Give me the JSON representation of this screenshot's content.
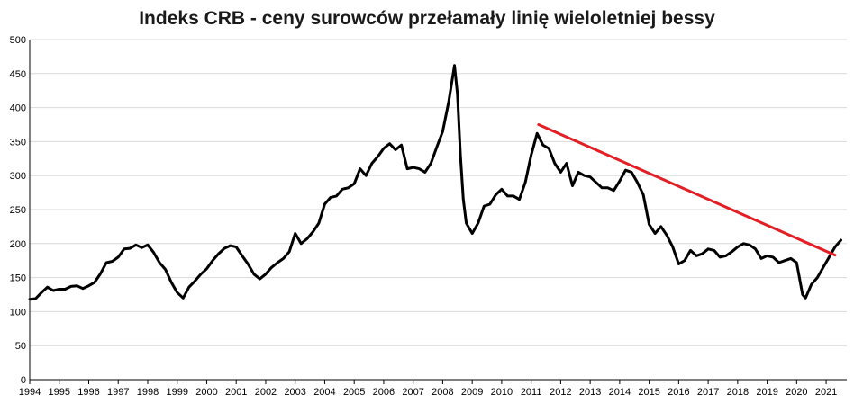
{
  "chart_data": {
    "type": "line",
    "title": "Indeks CRB - ceny surowców przełamały linię wieloletniej bessy",
    "xlabel": "",
    "ylabel": "",
    "xlim": [
      1994.0,
      2021.7
    ],
    "ylim": [
      0,
      500
    ],
    "grid": true,
    "legend": "none",
    "y_ticks": [
      0,
      50,
      100,
      150,
      200,
      250,
      300,
      350,
      400,
      450,
      500
    ],
    "x_ticks": [
      "1994",
      "1995",
      "1996",
      "1997",
      "1998",
      "1999",
      "2000",
      "2001",
      "2002",
      "2003",
      "2004",
      "2005",
      "2006",
      "2007",
      "2008",
      "2009",
      "2010",
      "2011",
      "2012",
      "2013",
      "2014",
      "2015",
      "2016",
      "2017",
      "2018",
      "2019",
      "2020",
      "2021"
    ],
    "colors": {
      "series": "#000000",
      "trendline": "#e31e24",
      "grid": "#d9d9d9"
    },
    "series": [
      {
        "values": [
          [
            1994.0,
            118
          ],
          [
            1994.2,
            119
          ],
          [
            1994.4,
            128
          ],
          [
            1994.6,
            136
          ],
          [
            1994.8,
            131
          ],
          [
            1995.0,
            133
          ],
          [
            1995.2,
            133
          ],
          [
            1995.4,
            137
          ],
          [
            1995.6,
            138
          ],
          [
            1995.8,
            134
          ],
          [
            1996.0,
            138
          ],
          [
            1996.2,
            143
          ],
          [
            1996.4,
            156
          ],
          [
            1996.6,
            172
          ],
          [
            1996.8,
            174
          ],
          [
            1997.0,
            180
          ],
          [
            1997.2,
            192
          ],
          [
            1997.4,
            193
          ],
          [
            1997.6,
            198
          ],
          [
            1997.8,
            194
          ],
          [
            1998.0,
            198
          ],
          [
            1998.2,
            187
          ],
          [
            1998.4,
            172
          ],
          [
            1998.6,
            162
          ],
          [
            1998.8,
            143
          ],
          [
            1999.0,
            128
          ],
          [
            1999.2,
            120
          ],
          [
            1999.4,
            136
          ],
          [
            1999.6,
            145
          ],
          [
            1999.8,
            155
          ],
          [
            2000.0,
            163
          ],
          [
            2000.2,
            175
          ],
          [
            2000.4,
            185
          ],
          [
            2000.6,
            193
          ],
          [
            2000.8,
            197
          ],
          [
            2001.0,
            195
          ],
          [
            2001.2,
            182
          ],
          [
            2001.4,
            170
          ],
          [
            2001.6,
            155
          ],
          [
            2001.8,
            148
          ],
          [
            2002.0,
            155
          ],
          [
            2002.2,
            165
          ],
          [
            2002.4,
            172
          ],
          [
            2002.6,
            178
          ],
          [
            2002.8,
            188
          ],
          [
            2003.0,
            215
          ],
          [
            2003.2,
            200
          ],
          [
            2003.4,
            207
          ],
          [
            2003.6,
            217
          ],
          [
            2003.8,
            230
          ],
          [
            2004.0,
            258
          ],
          [
            2004.2,
            268
          ],
          [
            2004.4,
            270
          ],
          [
            2004.6,
            280
          ],
          [
            2004.8,
            282
          ],
          [
            2005.0,
            288
          ],
          [
            2005.2,
            310
          ],
          [
            2005.4,
            300
          ],
          [
            2005.6,
            318
          ],
          [
            2005.8,
            328
          ],
          [
            2006.0,
            340
          ],
          [
            2006.2,
            347
          ],
          [
            2006.4,
            338
          ],
          [
            2006.6,
            345
          ],
          [
            2006.8,
            310
          ],
          [
            2007.0,
            312
          ],
          [
            2007.2,
            310
          ],
          [
            2007.4,
            305
          ],
          [
            2007.6,
            318
          ],
          [
            2007.8,
            342
          ],
          [
            2008.0,
            365
          ],
          [
            2008.2,
            408
          ],
          [
            2008.4,
            462
          ],
          [
            2008.5,
            420
          ],
          [
            2008.6,
            330
          ],
          [
            2008.7,
            265
          ],
          [
            2008.8,
            230
          ],
          [
            2009.0,
            215
          ],
          [
            2009.2,
            230
          ],
          [
            2009.4,
            255
          ],
          [
            2009.6,
            258
          ],
          [
            2009.8,
            272
          ],
          [
            2010.0,
            280
          ],
          [
            2010.2,
            270
          ],
          [
            2010.4,
            270
          ],
          [
            2010.6,
            265
          ],
          [
            2010.8,
            290
          ],
          [
            2011.0,
            330
          ],
          [
            2011.2,
            362
          ],
          [
            2011.4,
            345
          ],
          [
            2011.6,
            340
          ],
          [
            2011.8,
            318
          ],
          [
            2012.0,
            305
          ],
          [
            2012.2,
            318
          ],
          [
            2012.4,
            285
          ],
          [
            2012.6,
            305
          ],
          [
            2012.8,
            300
          ],
          [
            2013.0,
            298
          ],
          [
            2013.2,
            290
          ],
          [
            2013.4,
            282
          ],
          [
            2013.6,
            282
          ],
          [
            2013.8,
            278
          ],
          [
            2014.0,
            292
          ],
          [
            2014.2,
            308
          ],
          [
            2014.4,
            305
          ],
          [
            2014.6,
            290
          ],
          [
            2014.8,
            272
          ],
          [
            2015.0,
            228
          ],
          [
            2015.2,
            215
          ],
          [
            2015.4,
            225
          ],
          [
            2015.6,
            212
          ],
          [
            2015.8,
            195
          ],
          [
            2016.0,
            170
          ],
          [
            2016.2,
            175
          ],
          [
            2016.4,
            190
          ],
          [
            2016.6,
            182
          ],
          [
            2016.8,
            185
          ],
          [
            2017.0,
            192
          ],
          [
            2017.2,
            190
          ],
          [
            2017.4,
            180
          ],
          [
            2017.6,
            182
          ],
          [
            2017.8,
            188
          ],
          [
            2018.0,
            195
          ],
          [
            2018.2,
            200
          ],
          [
            2018.4,
            198
          ],
          [
            2018.6,
            192
          ],
          [
            2018.8,
            178
          ],
          [
            2019.0,
            182
          ],
          [
            2019.2,
            180
          ],
          [
            2019.4,
            172
          ],
          [
            2019.6,
            175
          ],
          [
            2019.8,
            178
          ],
          [
            2020.0,
            172
          ],
          [
            2020.2,
            125
          ],
          [
            2020.3,
            120
          ],
          [
            2020.5,
            140
          ],
          [
            2020.7,
            150
          ],
          [
            2020.9,
            165
          ],
          [
            2021.1,
            180
          ],
          [
            2021.3,
            195
          ],
          [
            2021.5,
            205
          ]
        ]
      }
    ],
    "trendline": {
      "start": [
        2011.25,
        375
      ],
      "end": [
        2021.3,
        183
      ]
    }
  }
}
